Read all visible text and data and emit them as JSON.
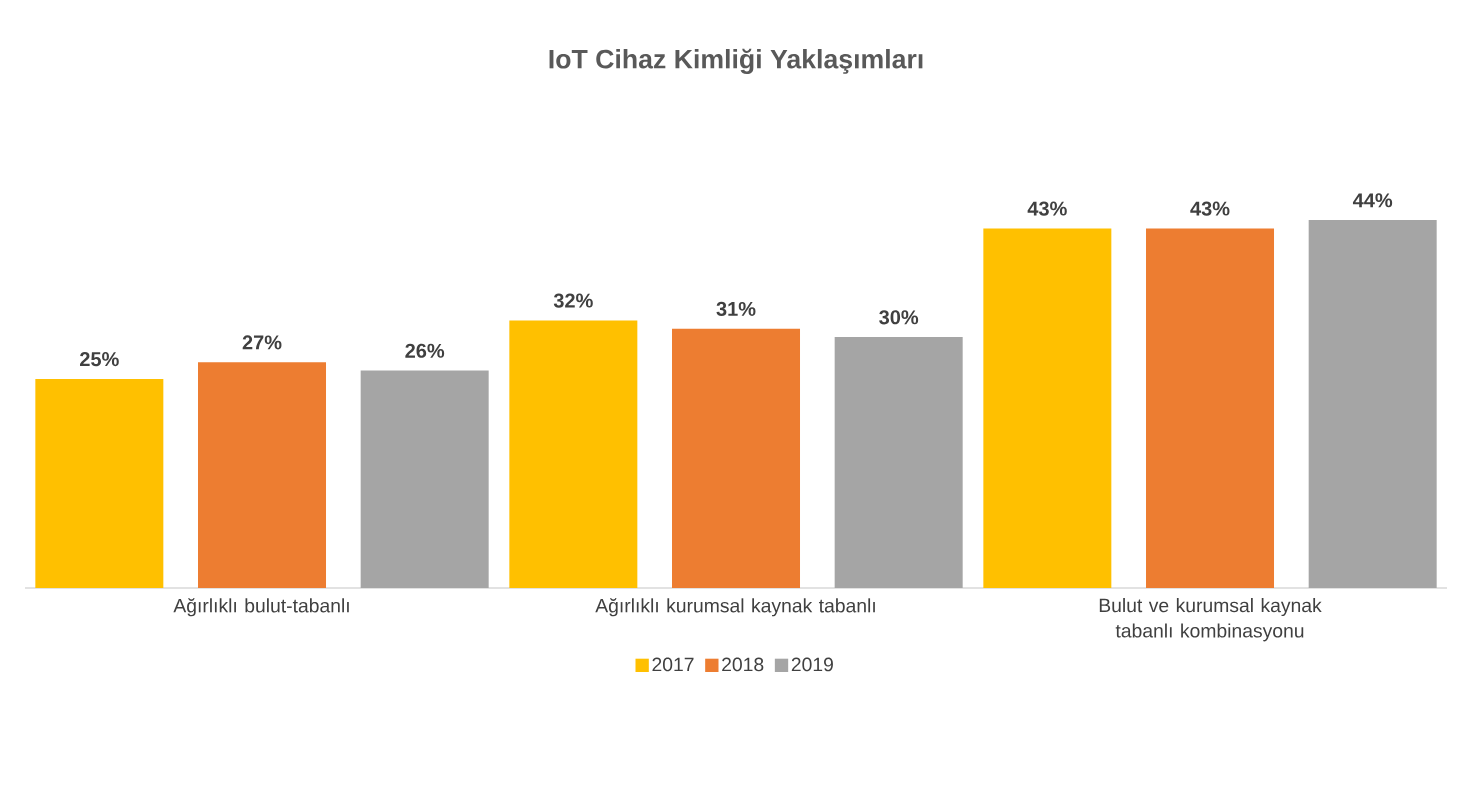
{
  "chart_data": {
    "type": "bar",
    "title": "IoT Cihaz Kimliği Yaklaşımları",
    "categories": [
      "Ağırlıklı bulut-tabanlı",
      "Ağırlıklı kurumsal kaynak tabanlı",
      "Bulut ve kurumsal kaynak tabanlı kombinasyonu"
    ],
    "series": [
      {
        "name": "2017",
        "color": "#ffc000",
        "values": [
          25,
          32,
          43
        ],
        "value_labels": [
          "25%",
          "32%",
          "43%"
        ]
      },
      {
        "name": "2018",
        "color": "#ed7d31",
        "values": [
          27,
          31,
          43
        ],
        "value_labels": [
          "27%",
          "31%",
          "43%"
        ]
      },
      {
        "name": "2019",
        "color": "#a5a5a5",
        "values": [
          26,
          30,
          44
        ],
        "value_labels": [
          "26%",
          "30%",
          "44%"
        ]
      }
    ],
    "legend": "bottom"
  }
}
